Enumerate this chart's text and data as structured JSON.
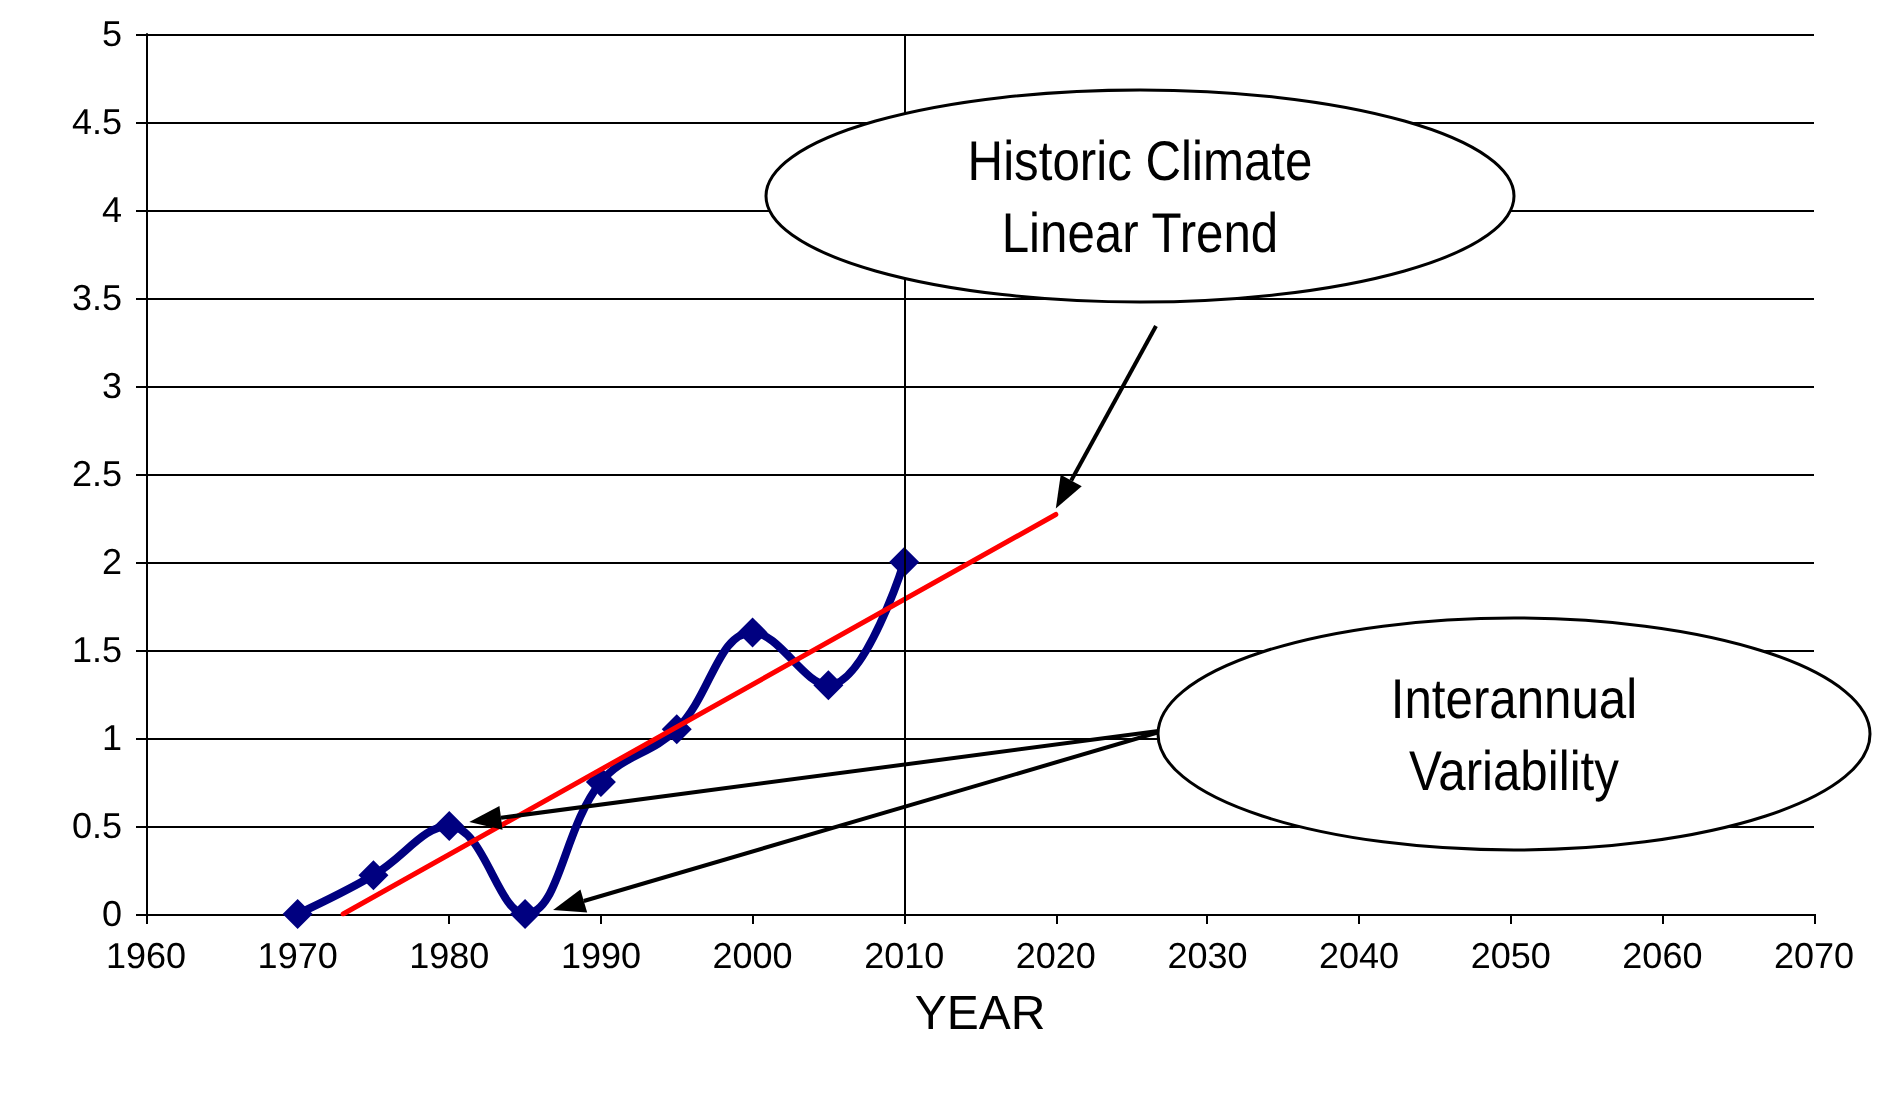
{
  "chart_data": {
    "type": "line",
    "xlabel": "YEAR",
    "series": [
      {
        "color": "#000080",
        "marker": "diamond",
        "x": [
          1970,
          1975,
          1980,
          1985,
          1990,
          1995,
          2000,
          2005,
          2010
        ],
        "values": [
          0,
          0.22,
          0.5,
          0,
          0.75,
          1.05,
          1.6,
          1.3,
          2.0
        ]
      },
      {
        "color": "#ff0000",
        "marker": "none",
        "x": [
          1973,
          2020
        ],
        "values": [
          0,
          2.27
        ]
      }
    ],
    "xlim": [
      1960,
      2070
    ],
    "xticks": [
      1960,
      1970,
      1980,
      1990,
      2000,
      2010,
      2020,
      2030,
      2040,
      2050,
      2060,
      2070
    ],
    "ylim": [
      0,
      5
    ],
    "yticks": [
      0,
      0.5,
      1,
      1.5,
      2,
      2.5,
      3,
      3.5,
      4,
      4.5,
      5
    ],
    "grid": "y",
    "ref_lines": [
      {
        "axis": "x",
        "value": 2010,
        "color": "#000000"
      }
    ],
    "annotations": [
      "Historic Climate Linear Trend",
      "Interannual Variability"
    ]
  }
}
